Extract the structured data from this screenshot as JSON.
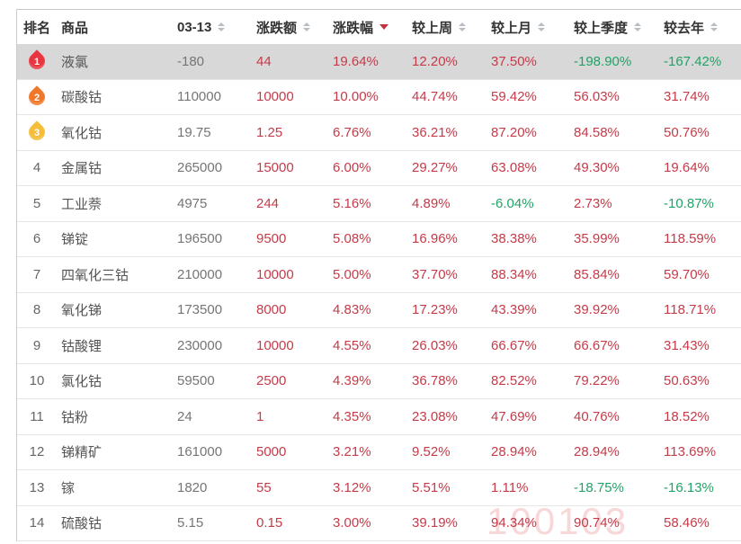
{
  "watermark": "100103",
  "colors": {
    "up": "#c43b49",
    "down": "#1fa366",
    "highlight_row_bg": "#d8d8d8",
    "flame_rank_1": "#e8353f",
    "flame_rank_2": "#f0782a",
    "flame_rank_3": "#f5bd3a",
    "active_sort_arrow": "#c0323e"
  },
  "table": {
    "columns": [
      {
        "key": "rank",
        "label": "排名",
        "cls": "c-rank",
        "sortable": false,
        "sorted": ""
      },
      {
        "key": "name",
        "label": "商品",
        "cls": "c-name",
        "sortable": false,
        "sorted": ""
      },
      {
        "key": "price",
        "label": "03-13",
        "cls": "c-price",
        "sortable": true,
        "sorted": ""
      },
      {
        "key": "change",
        "label": "涨跌额",
        "cls": "c-change",
        "sortable": true,
        "sorted": ""
      },
      {
        "key": "pct",
        "label": "涨跌幅",
        "cls": "c-pct",
        "sortable": true,
        "sorted": "desc"
      },
      {
        "key": "week",
        "label": "较上周",
        "cls": "c-week",
        "sortable": true,
        "sorted": ""
      },
      {
        "key": "month",
        "label": "较上月",
        "cls": "c-month",
        "sortable": true,
        "sorted": ""
      },
      {
        "key": "quarter",
        "label": "较上季度",
        "cls": "c-quarter",
        "sortable": true,
        "sorted": ""
      },
      {
        "key": "year",
        "label": "较去年",
        "cls": "c-year",
        "sortable": true,
        "sorted": ""
      }
    ],
    "rows": [
      {
        "rank": "1",
        "hot": true,
        "highlight": true,
        "name": "液氯",
        "price": "-180",
        "change": "44",
        "pct": "19.64%",
        "week": "12.20%",
        "month": "37.50%",
        "quarter": "-198.90%",
        "year": "-167.42%"
      },
      {
        "rank": "2",
        "hot": true,
        "highlight": false,
        "name": "碳酸钴",
        "price": "110000",
        "change": "10000",
        "pct": "10.00%",
        "week": "44.74%",
        "month": "59.42%",
        "quarter": "56.03%",
        "year": "31.74%"
      },
      {
        "rank": "3",
        "hot": true,
        "highlight": false,
        "name": "氧化钴",
        "price": "19.75",
        "change": "1.25",
        "pct": "6.76%",
        "week": "36.21%",
        "month": "87.20%",
        "quarter": "84.58%",
        "year": "50.76%"
      },
      {
        "rank": "4",
        "hot": false,
        "highlight": false,
        "name": "金属钴",
        "price": "265000",
        "change": "15000",
        "pct": "6.00%",
        "week": "29.27%",
        "month": "63.08%",
        "quarter": "49.30%",
        "year": "19.64%"
      },
      {
        "rank": "5",
        "hot": false,
        "highlight": false,
        "name": "工业萘",
        "price": "4975",
        "change": "244",
        "pct": "5.16%",
        "week": "4.89%",
        "month": "-6.04%",
        "quarter": "2.73%",
        "year": "-10.87%"
      },
      {
        "rank": "6",
        "hot": false,
        "highlight": false,
        "name": "锑锭",
        "price": "196500",
        "change": "9500",
        "pct": "5.08%",
        "week": "16.96%",
        "month": "38.38%",
        "quarter": "35.99%",
        "year": "118.59%"
      },
      {
        "rank": "7",
        "hot": false,
        "highlight": false,
        "name": "四氧化三钴",
        "price": "210000",
        "change": "10000",
        "pct": "5.00%",
        "week": "37.70%",
        "month": "88.34%",
        "quarter": "85.84%",
        "year": "59.70%"
      },
      {
        "rank": "8",
        "hot": false,
        "highlight": false,
        "name": "氧化锑",
        "price": "173500",
        "change": "8000",
        "pct": "4.83%",
        "week": "17.23%",
        "month": "43.39%",
        "quarter": "39.92%",
        "year": "118.71%"
      },
      {
        "rank": "9",
        "hot": false,
        "highlight": false,
        "name": "钴酸锂",
        "price": "230000",
        "change": "10000",
        "pct": "4.55%",
        "week": "26.03%",
        "month": "66.67%",
        "quarter": "66.67%",
        "year": "31.43%"
      },
      {
        "rank": "10",
        "hot": false,
        "highlight": false,
        "name": "氯化钴",
        "price": "59500",
        "change": "2500",
        "pct": "4.39%",
        "week": "36.78%",
        "month": "82.52%",
        "quarter": "79.22%",
        "year": "50.63%"
      },
      {
        "rank": "11",
        "hot": false,
        "highlight": false,
        "name": "钴粉",
        "price": "24",
        "change": "1",
        "pct": "4.35%",
        "week": "23.08%",
        "month": "47.69%",
        "quarter": "40.76%",
        "year": "18.52%"
      },
      {
        "rank": "12",
        "hot": false,
        "highlight": false,
        "name": "锑精矿",
        "price": "161000",
        "change": "5000",
        "pct": "3.21%",
        "week": "9.52%",
        "month": "28.94%",
        "quarter": "28.94%",
        "year": "113.69%"
      },
      {
        "rank": "13",
        "hot": false,
        "highlight": false,
        "name": "镓",
        "price": "1820",
        "change": "55",
        "pct": "3.12%",
        "week": "5.51%",
        "month": "1.11%",
        "quarter": "-18.75%",
        "year": "-16.13%"
      },
      {
        "rank": "14",
        "hot": false,
        "highlight": false,
        "name": "硫酸钴",
        "price": "5.15",
        "change": "0.15",
        "pct": "3.00%",
        "week": "39.19%",
        "month": "94.34%",
        "quarter": "90.74%",
        "year": "58.46%"
      }
    ]
  }
}
